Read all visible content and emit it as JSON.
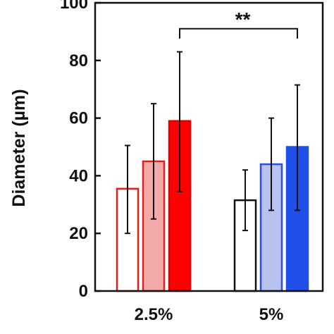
{
  "chart_data": {
    "type": "bar",
    "title": "",
    "xlabel": "",
    "ylabel": "Diameter (µm)",
    "ylim": [
      0,
      100
    ],
    "yticks": [
      0,
      20,
      40,
      60,
      80,
      100
    ],
    "grid": false,
    "legend": "none",
    "categories": [
      "2.5%",
      "5%"
    ],
    "bars_per_category": 3,
    "groups": [
      {
        "category": "2.5%",
        "bars": [
          {
            "value": 35.5,
            "error_low": 20,
            "error_high": 50.5,
            "fill": "#ffffff",
            "stroke": "#e02020"
          },
          {
            "value": 45,
            "error_low": 25,
            "error_high": 65,
            "fill": "#f5aaaa",
            "stroke": "#e02020"
          },
          {
            "value": 59,
            "error_low": 34.5,
            "error_high": 83,
            "fill": "#ff0000",
            "stroke": "#e00000"
          }
        ]
      },
      {
        "category": "5%",
        "bars": [
          {
            "value": 31.5,
            "error_low": 21,
            "error_high": 42,
            "fill": "#ffffff",
            "stroke": "#111111"
          },
          {
            "value": 44,
            "error_low": 28,
            "error_high": 60,
            "fill": "#b7c3ee",
            "stroke": "#2a4ee0"
          },
          {
            "value": 50,
            "error_low": 28,
            "error_high": 71.5,
            "fill": "#1f4ee8",
            "stroke": "#1f4ee8"
          }
        ]
      }
    ],
    "annotations": [
      {
        "text": "**",
        "from": {
          "group": 0,
          "bar": 2
        },
        "to": {
          "group": 1,
          "bar": 2
        },
        "y": 91
      }
    ]
  }
}
